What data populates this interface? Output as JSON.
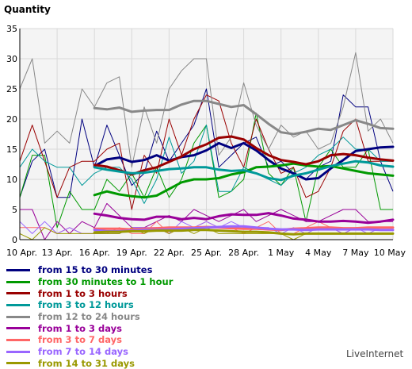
{
  "colors": {
    "plot_background": "#f4f4f4",
    "grid": "#d9d9d9",
    "axis": "#000000",
    "brand_text": "#444444"
  },
  "brand": "LiveInternet",
  "chart_data": {
    "type": "line",
    "title": "",
    "ylabel": "Quantity",
    "xlabel": "",
    "ylim": [
      0,
      35
    ],
    "yticks": [
      0,
      5,
      10,
      15,
      20,
      25,
      30,
      35
    ],
    "grid": true,
    "legend_position": "bottom-left",
    "x": [
      "10 Apr.",
      "11 Apr.",
      "12 Apr.",
      "13 Apr.",
      "14 Apr.",
      "15 Apr.",
      "16 Apr.",
      "17 Apr.",
      "18 Apr.",
      "19 Apr.",
      "20 Apr.",
      "21 Apr.",
      "22 Apr.",
      "23 Apr.",
      "24 Apr.",
      "25 Apr.",
      "26 Apr.",
      "27 Apr.",
      "28 Apr.",
      "29 Apr.",
      "30 Apr.",
      "1 May",
      "2 May",
      "3 May",
      "4 May",
      "5 May",
      "6 May",
      "7 May",
      "8 May",
      "9 May",
      "10 May"
    ],
    "xtick_labels": [
      "10 Apr.",
      "13 Apr.",
      "16 Apr.",
      "19 Apr.",
      "22 Apr.",
      "25 Apr.",
      "28 Apr.",
      "1 May",
      "4 May",
      "7 May",
      "10 May"
    ],
    "series": [
      {
        "name": "from 15 to 30 minutes",
        "color": "#00007f",
        "daily": [
          7,
          13,
          15,
          7,
          7,
          20,
          12,
          19,
          14,
          9,
          11,
          18,
          13,
          16,
          19,
          25,
          12,
          14,
          16,
          17,
          12,
          13,
          11,
          10,
          12,
          13,
          24,
          22,
          22,
          13,
          8
        ],
        "trend": [
          null,
          null,
          null,
          null,
          null,
          null,
          12.2,
          13.3,
          13.6,
          12.9,
          13.2,
          14.0,
          13.1,
          13.7,
          14.0,
          14.8,
          16.0,
          15.2,
          16.0,
          14.8,
          13.2,
          11.8,
          11.0,
          10.0,
          10.2,
          11.8,
          13.2,
          14.7,
          15.0,
          15.3,
          15.4
        ]
      },
      {
        "name": "from 30 minutes to 1 hour",
        "color": "#009900",
        "daily": [
          7,
          14,
          14,
          2,
          8,
          5,
          5,
          10,
          8,
          11,
          7,
          12,
          7,
          10,
          16,
          19,
          7,
          8,
          10,
          21,
          11,
          9,
          12,
          3,
          12,
          15,
          12,
          12,
          15,
          5,
          5
        ],
        "trend": [
          null,
          null,
          null,
          null,
          null,
          null,
          7.4,
          8.0,
          7.5,
          7.2,
          7.0,
          7.3,
          8.4,
          9.5,
          10.0,
          10.0,
          10.2,
          10.8,
          11.2,
          12.0,
          12.1,
          12.3,
          12.6,
          12.3,
          12.1,
          12.2,
          11.8,
          11.4,
          11.0,
          10.8,
          10.6
        ]
      },
      {
        "name": "from 1 to 3 hours",
        "color": "#990000",
        "daily": [
          13,
          19,
          13,
          7,
          12,
          13,
          13,
          15,
          16,
          5,
          14,
          11,
          20,
          14,
          20,
          24,
          23,
          16,
          12,
          20,
          15,
          11,
          12,
          7,
          8,
          12,
          18,
          20,
          13,
          13,
          13
        ],
        "trend": [
          null,
          null,
          null,
          null,
          null,
          null,
          12.4,
          12.1,
          11.5,
          10.8,
          11.5,
          12.0,
          12.9,
          13.8,
          15.0,
          15.8,
          16.9,
          17.1,
          16.6,
          15.2,
          14.0,
          13.2,
          12.9,
          12.5,
          13.0,
          14.0,
          14.2,
          14.0,
          13.6,
          13.3,
          13.1
        ]
      },
      {
        "name": "from 3 to 12 hours",
        "color": "#009999",
        "daily": [
          12,
          15,
          13,
          12,
          12,
          9,
          11,
          12,
          12,
          10,
          6,
          10,
          17,
          11,
          13,
          19,
          8,
          8,
          12,
          11,
          10,
          9,
          11,
          12,
          14,
          15,
          17,
          15,
          15,
          13,
          13
        ],
        "trend": [
          null,
          null,
          null,
          null,
          null,
          null,
          12.0,
          11.6,
          11.3,
          11.0,
          11.1,
          11.4,
          11.7,
          11.8,
          12.0,
          12.0,
          11.6,
          11.4,
          11.5,
          11.0,
          10.2,
          9.9,
          10.6,
          11.0,
          11.6,
          12.2,
          12.6,
          13.0,
          12.8,
          12.3,
          12.1
        ]
      },
      {
        "name": "from 12 to 24 hours",
        "color": "#888888",
        "daily": [
          25,
          30,
          16,
          18,
          16,
          25,
          22,
          26,
          27,
          12,
          22,
          16,
          25,
          28,
          30,
          30,
          14,
          17,
          26,
          19,
          15,
          19,
          17,
          18,
          15,
          16,
          22,
          31,
          18,
          20,
          16
        ],
        "trend": [
          null,
          null,
          null,
          null,
          null,
          null,
          21.8,
          21.6,
          21.9,
          21.2,
          21.4,
          21.5,
          21.5,
          22.4,
          23.0,
          23.0,
          22.5,
          22.0,
          22.3,
          20.8,
          19.2,
          17.8,
          17.5,
          17.9,
          18.4,
          18.2,
          19.0,
          19.8,
          19.2,
          18.5,
          18.4
        ]
      },
      {
        "name": "from 1 to 3 days",
        "color": "#990099",
        "daily": [
          5,
          5,
          0,
          3,
          1,
          3,
          2,
          6,
          4,
          2,
          2,
          3,
          4,
          3,
          5,
          4,
          3,
          4,
          5,
          3,
          4,
          5,
          4,
          3,
          3,
          4,
          5,
          5,
          3,
          3,
          3
        ],
        "trend": [
          null,
          null,
          null,
          null,
          null,
          null,
          4.3,
          4.0,
          3.6,
          3.4,
          3.3,
          3.8,
          3.8,
          3.4,
          3.6,
          3.4,
          3.9,
          4.2,
          4.1,
          4.1,
          4.4,
          4.0,
          3.5,
          3.3,
          3.0,
          3.0,
          3.1,
          3.0,
          2.8,
          3.0,
          3.3
        ]
      },
      {
        "name": "from 3 to 7 days",
        "color": "#ff6666",
        "daily": [
          2,
          2,
          2,
          1,
          2,
          1,
          1,
          1,
          2,
          1,
          1,
          3,
          1,
          2,
          2,
          3,
          2,
          2,
          1,
          2,
          3,
          1,
          1,
          2,
          3,
          2,
          1,
          2,
          2,
          2,
          2
        ],
        "trend": [
          null,
          null,
          null,
          null,
          null,
          null,
          1.8,
          1.8,
          1.8,
          1.7,
          1.8,
          1.9,
          2.0,
          2.0,
          2.0,
          2.1,
          2.0,
          1.9,
          1.8,
          1.8,
          1.7,
          1.6,
          1.8,
          1.9,
          2.0,
          2.0,
          1.9,
          1.9,
          2.0,
          2.0,
          2.0
        ]
      },
      {
        "name": "from 7 to 14 days",
        "color": "#9966ff",
        "daily": [
          3,
          1,
          3,
          1,
          2,
          1,
          1,
          1,
          1,
          2,
          2,
          2,
          1,
          3,
          2,
          3,
          2,
          3,
          2,
          2,
          2,
          1,
          2,
          1,
          2,
          2,
          1,
          2,
          1,
          2,
          2
        ],
        "trend": [
          null,
          null,
          null,
          null,
          null,
          null,
          1.6,
          1.4,
          1.4,
          1.5,
          1.6,
          1.6,
          1.7,
          1.8,
          1.9,
          2.0,
          2.1,
          2.2,
          2.2,
          2.0,
          1.8,
          1.7,
          1.7,
          1.6,
          1.7,
          1.7,
          1.7,
          1.7,
          1.7,
          1.6,
          1.6
        ]
      },
      {
        "name": "from 14 to 31 days",
        "color": "#999900",
        "daily": [
          1,
          0,
          2,
          1,
          1,
          1,
          1,
          1,
          1,
          2,
          1,
          2,
          1,
          2,
          1,
          2,
          1,
          1,
          1,
          1,
          1,
          1,
          0,
          1,
          1,
          1,
          1,
          1,
          1,
          1,
          1
        ],
        "trend": [
          null,
          null,
          null,
          null,
          null,
          null,
          1.2,
          1.3,
          1.3,
          1.4,
          1.4,
          1.5,
          1.5,
          1.5,
          1.6,
          1.6,
          1.5,
          1.4,
          1.3,
          1.3,
          1.2,
          1.0,
          0.9,
          1.0,
          1.0,
          1.0,
          1.0,
          1.0,
          1.0,
          1.0,
          1.0
        ]
      }
    ]
  }
}
